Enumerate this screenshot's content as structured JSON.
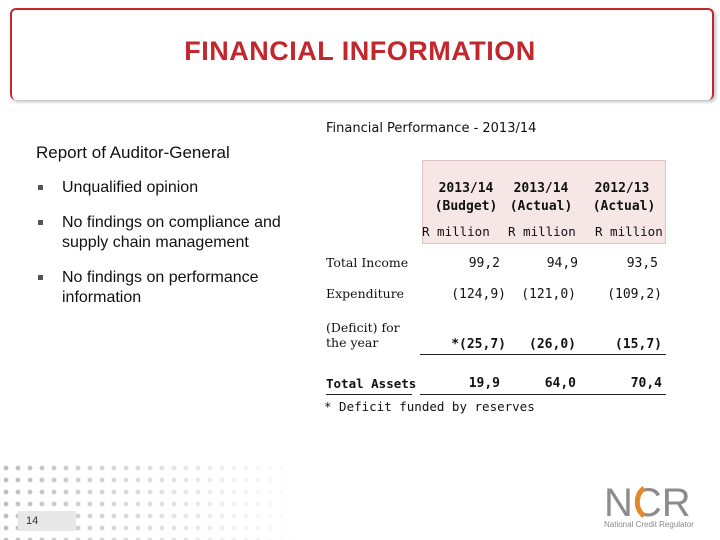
{
  "title": "FINANCIAL INFORMATION",
  "left": {
    "heading": "Report of Auditor-General",
    "bullets": [
      "Unqualified opinion",
      "No findings on compliance and supply chain management",
      "No findings on performance information"
    ]
  },
  "table": {
    "title": "Financial Performance - 2013/14",
    "columns": [
      {
        "year": "2013/14",
        "type": "(Budget)",
        "unit": "R million"
      },
      {
        "year": "2013/14",
        "type": "(Actual)",
        "unit": "R million"
      },
      {
        "year": "2012/13",
        "type": "(Actual)",
        "unit": "R million"
      }
    ],
    "rows": [
      {
        "label": "Total Income",
        "values": [
          "99,2",
          "94,9",
          "93,5"
        ]
      },
      {
        "label": "Expenditure",
        "values": [
          "(124,9)",
          "(121,0)",
          "(109,2)"
        ]
      },
      {
        "label": "(Deficit) for the year",
        "values": [
          "*(25,7)",
          "(26,0)",
          "(15,7)"
        ]
      },
      {
        "label": "Total Assets",
        "values": [
          "19,9",
          "64,0",
          "70,4"
        ]
      }
    ],
    "footnote": "* Deficit funded by reserves"
  },
  "footer": {
    "page_number": "14",
    "logo_letters": "NCR",
    "logo_text": "National Credit Regulator",
    "logo_colors": {
      "primary": "#8c8c8c",
      "accent": "#e08a2a"
    }
  }
}
